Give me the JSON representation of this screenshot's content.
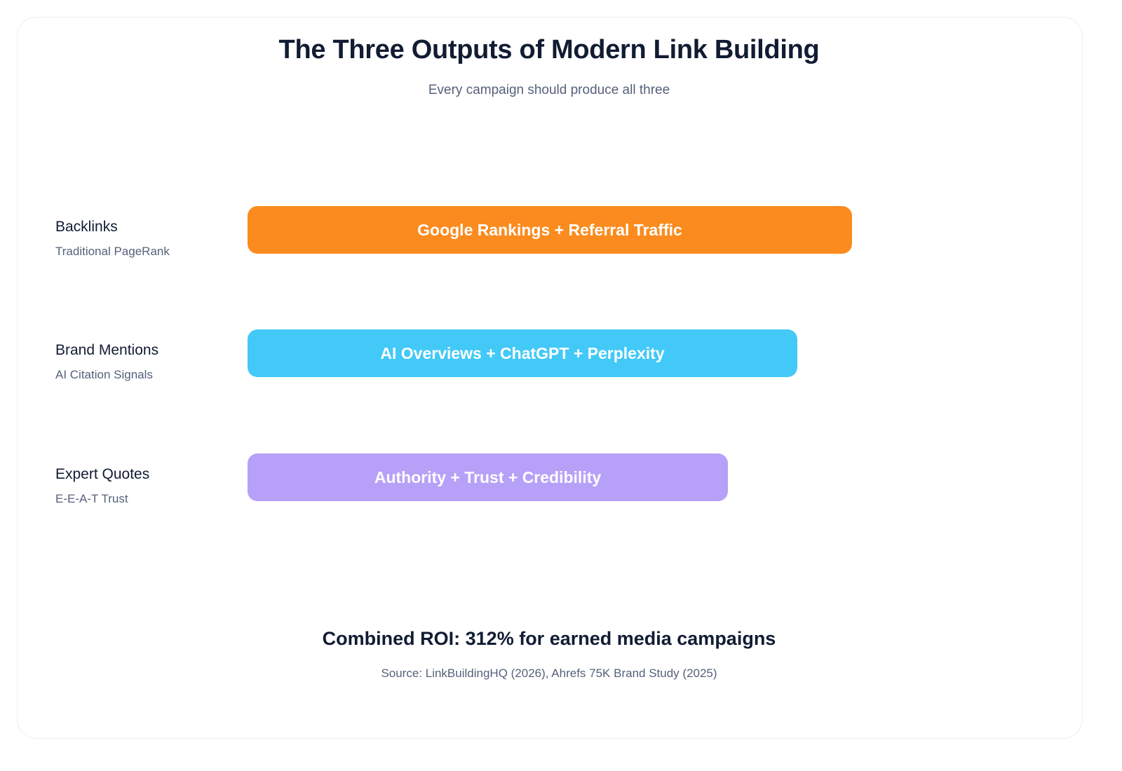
{
  "header": {
    "title": "The Three Outputs of Modern Link Building",
    "subtitle": "Every campaign should produce all three"
  },
  "outputs": [
    {
      "label": "Backlinks",
      "sublabel": "Traditional PageRank",
      "bar_text": "Google Rankings + Referral Traffic",
      "color": "#fb8b1e",
      "relative_length": 1.0
    },
    {
      "label": "Brand Mentions",
      "sublabel": "AI Citation Signals",
      "bar_text": "AI Overviews + ChatGPT + Perplexity",
      "color": "#42c9f7",
      "relative_length": 0.909
    },
    {
      "label": "Expert Quotes",
      "sublabel": "E-E-A-T Trust",
      "bar_text": "Authority + Trust + Credibility",
      "color": "#b7a0f8",
      "relative_length": 0.795
    }
  ],
  "footer": {
    "headline": "Combined ROI: 312% for earned media campaigns",
    "source": "Source: LinkBuildingHQ (2026), Ahrefs 75K Brand Study (2025)"
  }
}
